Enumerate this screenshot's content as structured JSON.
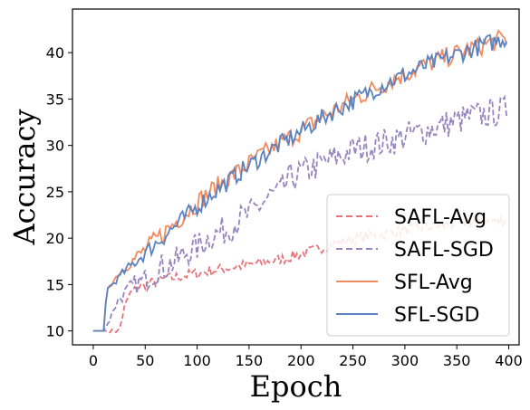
{
  "chart_data": {
    "type": "line",
    "xlabel": "Epoch",
    "ylabel": "Accuracy",
    "xlim": [
      -20,
      410
    ],
    "ylim": [
      8.5,
      44.7
    ],
    "xticks": [
      0,
      50,
      100,
      150,
      200,
      250,
      300,
      350,
      400
    ],
    "yticks": [
      10,
      15,
      20,
      25,
      30,
      35,
      40
    ],
    "grid": false,
    "legend_position": "lower-right",
    "series": [
      {
        "name": "SAFL-Avg",
        "color": "#e8727a",
        "style": "dashed",
        "x": [
          0,
          10,
          20,
          25,
          30,
          35,
          40,
          45,
          50,
          60,
          70,
          80,
          90,
          100,
          110,
          120,
          130,
          140,
          150,
          160,
          170,
          180,
          190,
          200,
          210,
          220,
          230,
          240,
          250,
          260,
          270,
          280,
          290,
          300,
          310,
          320,
          330,
          340,
          350,
          360,
          370,
          380,
          390,
          398
        ],
        "y": [
          10,
          10,
          10,
          10,
          12.5,
          14,
          14.5,
          14.8,
          15,
          15.3,
          15.6,
          15.8,
          16,
          16.2,
          16.4,
          16.6,
          16.8,
          17,
          17.1,
          17.3,
          17.5,
          17.7,
          18,
          18.3,
          18.6,
          19,
          19.3,
          19.6,
          19.9,
          20.1,
          20.3,
          20.5,
          20.7,
          20.9,
          21,
          21.2,
          21.3,
          21.4,
          21.5,
          21.6,
          21.7,
          21.8,
          21.9,
          22
        ]
      },
      {
        "name": "SAFL-SGD",
        "color": "#9586c0",
        "style": "dashed",
        "x": [
          0,
          10,
          15,
          20,
          25,
          30,
          40,
          50,
          60,
          70,
          80,
          90,
          100,
          110,
          120,
          130,
          140,
          150,
          160,
          170,
          180,
          190,
          200,
          210,
          220,
          230,
          240,
          250,
          260,
          270,
          280,
          290,
          300,
          310,
          320,
          330,
          340,
          350,
          360,
          370,
          380,
          390,
          398
        ],
        "y": [
          10,
          10,
          11,
          12.5,
          13.5,
          14,
          15,
          15.5,
          16.5,
          17,
          17.5,
          18.5,
          19,
          20,
          20.5,
          21,
          22,
          22.5,
          23.5,
          24.5,
          25,
          26.5,
          27,
          27.5,
          28,
          28.5,
          29,
          29.5,
          29.8,
          30,
          30.3,
          30.6,
          31,
          31.3,
          31.6,
          32,
          32.3,
          32.6,
          33,
          33.2,
          33.4,
          33.6,
          33.8
        ]
      },
      {
        "name": "SFL-Avg",
        "color": "#f28b5e",
        "style": "solid",
        "x": [
          0,
          10,
          13,
          15,
          20,
          25,
          30,
          40,
          50,
          60,
          70,
          80,
          90,
          100,
          110,
          120,
          130,
          140,
          150,
          160,
          170,
          180,
          190,
          200,
          210,
          220,
          230,
          240,
          250,
          260,
          270,
          280,
          290,
          300,
          310,
          320,
          330,
          340,
          350,
          360,
          370,
          380,
          390,
          398
        ],
        "y": [
          10,
          10,
          14.5,
          14.8,
          15.5,
          16.3,
          16.8,
          17.8,
          18.8,
          19.8,
          20.8,
          21.8,
          22.8,
          23.8,
          24.8,
          25.6,
          26.4,
          27.2,
          28,
          28.8,
          29.5,
          30.2,
          30.9,
          31.6,
          32.3,
          33,
          33.7,
          34.3,
          34.9,
          35.5,
          36.1,
          36.6,
          37.2,
          37.7,
          38.2,
          38.7,
          39.1,
          39.5,
          39.9,
          40.3,
          40.6,
          41,
          41.3,
          41.5
        ]
      },
      {
        "name": "SFL-SGD",
        "color": "#5b83c2",
        "style": "solid",
        "x": [
          0,
          10,
          13,
          15,
          20,
          25,
          30,
          40,
          50,
          60,
          70,
          80,
          90,
          100,
          110,
          120,
          130,
          140,
          150,
          160,
          170,
          180,
          190,
          200,
          210,
          220,
          230,
          240,
          250,
          260,
          270,
          280,
          290,
          300,
          310,
          320,
          330,
          340,
          350,
          360,
          370,
          380,
          390,
          398
        ],
        "y": [
          10,
          10,
          14.5,
          14.7,
          15.2,
          15.8,
          16.4,
          17.4,
          18.4,
          19.4,
          20.4,
          21.4,
          22.4,
          23.4,
          24.4,
          25.3,
          26.1,
          27,
          27.8,
          28.6,
          29.4,
          30.1,
          30.8,
          31.5,
          32.2,
          32.9,
          33.6,
          34.2,
          34.8,
          35.4,
          36,
          36.6,
          37.1,
          37.6,
          38.1,
          38.6,
          39,
          39.4,
          39.8,
          40.2,
          40.6,
          41,
          41.3,
          41.6
        ]
      }
    ]
  }
}
